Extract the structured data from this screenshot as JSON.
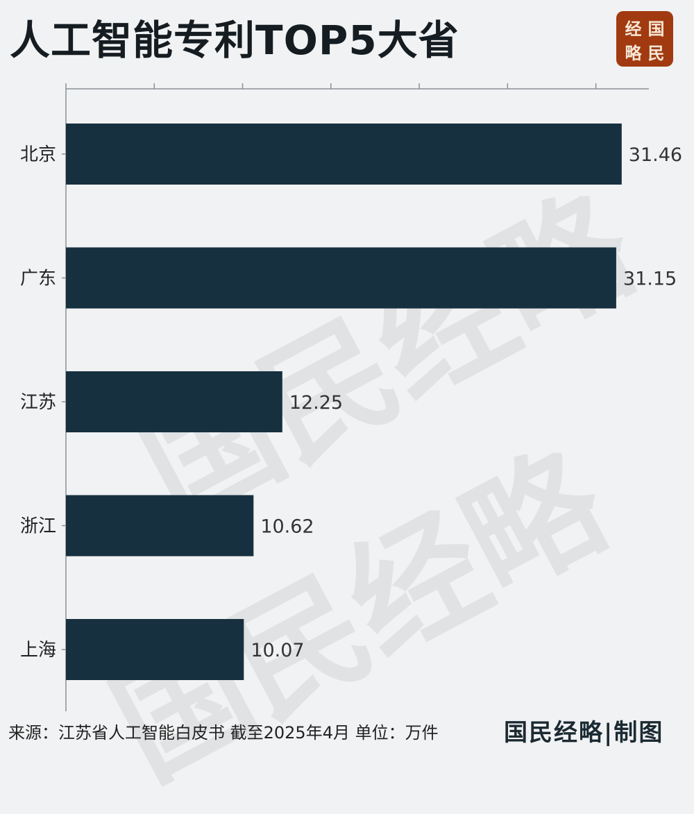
{
  "title": "人工智能专利TOP5大省",
  "logo": {
    "chars": [
      "经",
      "国",
      "略",
      "民"
    ],
    "color": "#a13a10"
  },
  "watermark": "国民经略",
  "footer": {
    "source": "来源：江苏省人工智能白皮书 截至2025年4月 单位：万件",
    "brand": "国民经略|制图"
  },
  "chart_data": {
    "type": "bar",
    "orientation": "horizontal",
    "categories": [
      "北京",
      "广东",
      "江苏",
      "浙江",
      "上海"
    ],
    "values": [
      31.46,
      31.15,
      12.25,
      10.62,
      10.07
    ],
    "data_labels": [
      "31.46",
      "31.15",
      "12.25",
      "10.62",
      "10.07"
    ],
    "xlim": [
      0,
      33
    ],
    "x_ticks": [
      0,
      5,
      10,
      15,
      20,
      25,
      30
    ],
    "x_tick_labels_shown": false,
    "x_axis_position": "top",
    "bar_color": "#17303f",
    "grid": false,
    "unit": "万件"
  }
}
